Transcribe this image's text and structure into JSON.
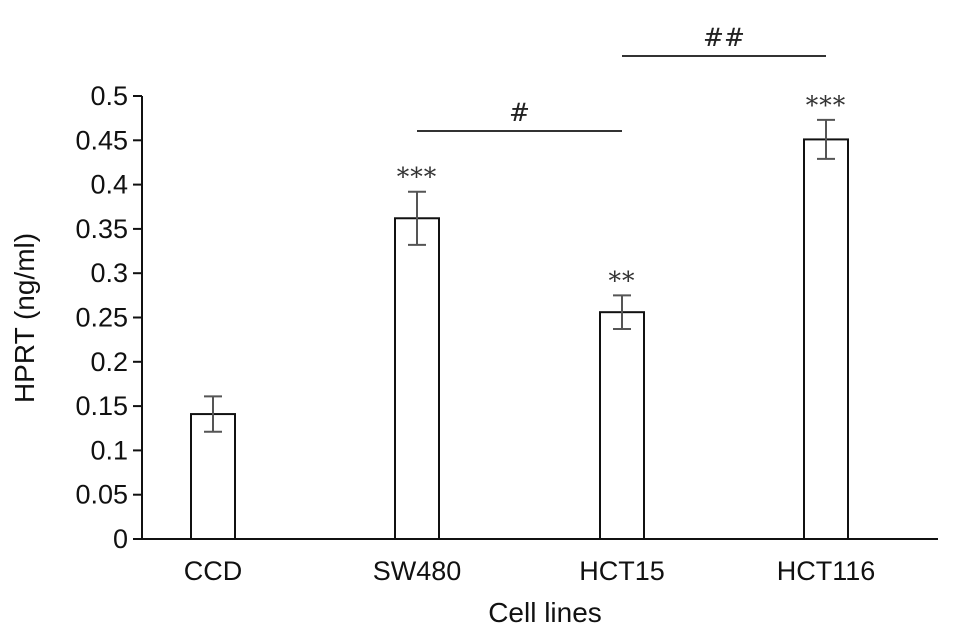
{
  "chart_data": {
    "type": "bar",
    "categories": [
      "CCD",
      "SW480",
      "HCT15",
      "HCT116"
    ],
    "values": [
      0.141,
      0.362,
      0.256,
      0.451
    ],
    "errors": [
      0.02,
      0.03,
      0.019,
      0.022
    ],
    "significance": [
      "",
      "***",
      "**",
      "***"
    ],
    "comparisons": [
      {
        "from": "SW480",
        "to": "HCT15",
        "label": "#"
      },
      {
        "from": "HCT15",
        "to": "HCT116",
        "label": "##"
      }
    ],
    "title": "",
    "xlabel": "Cell lines",
    "ylabel": "HPRT (ng/ml)",
    "ylim": [
      0,
      0.5
    ],
    "yticks": [
      "0",
      "0.05",
      "0.1",
      "0.15",
      "0.2",
      "0.25",
      "0.3",
      "0.35",
      "0.4",
      "0.45",
      "0.5"
    ],
    "grid": false,
    "legend": "none",
    "bar_fill": "#ffffff",
    "bar_stroke": "#111111",
    "error_color": "#555555"
  }
}
